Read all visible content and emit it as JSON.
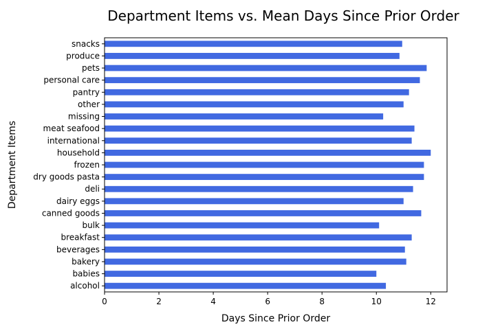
{
  "chart_data": {
    "type": "bar",
    "orientation": "horizontal",
    "title": "Department Items vs. Mean Days Since Prior Order",
    "xlabel": "Days Since Prior Order",
    "ylabel": "Department Items",
    "xlim": [
      0,
      12.6
    ],
    "xticks": [
      "0",
      "2",
      "4",
      "6",
      "8",
      "10",
      "12"
    ],
    "bar_color": "#4169e1",
    "grid": false,
    "legend": "none",
    "categories": [
      "alcohol",
      "babies",
      "bakery",
      "beverages",
      "breakfast",
      "bulk",
      "canned goods",
      "dairy eggs",
      "deli",
      "dry goods pasta",
      "frozen",
      "household",
      "international",
      "meat seafood",
      "missing",
      "other",
      "pantry",
      "personal care",
      "pets",
      "produce",
      "snacks"
    ],
    "values": [
      10.35,
      10.0,
      11.1,
      11.05,
      11.3,
      10.1,
      11.65,
      11.0,
      11.35,
      11.75,
      11.75,
      12.0,
      11.3,
      11.4,
      10.25,
      11.0,
      11.2,
      11.6,
      11.85,
      10.85,
      10.95
    ]
  }
}
